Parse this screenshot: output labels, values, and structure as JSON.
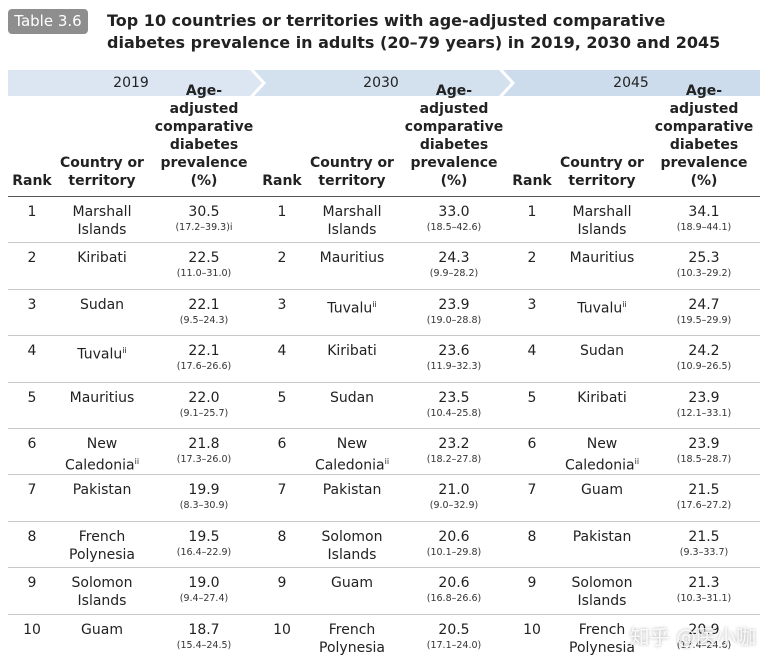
{
  "header": {
    "label": "Table 3.6",
    "title": "Top 10 countries or territories with age-adjusted comparative diabetes prevalence in adults (20–79 years) in 2019, 2030 and 2045"
  },
  "table": {
    "groups": [
      {
        "year": "2019",
        "columns": [
          "Rank",
          "Country or territory",
          "Age-adjusted comparative diabetes prevalence (%)"
        ]
      },
      {
        "year": "2030",
        "columns": [
          "Rank",
          "Country or territory",
          "Age-adjusted comparative diabetes prevalence (%)"
        ]
      },
      {
        "year": "2045",
        "columns": [
          "Rank",
          "Country or territory",
          "Age-adjusted comparative diabetes prevalence (%)"
        ]
      }
    ],
    "rows": [
      [
        {
          "rank": "1",
          "country": "Marshall Islands",
          "value": "30.5",
          "ci": "(17.2–39.3)i"
        },
        {
          "rank": "1",
          "country": "Marshall Islands",
          "value": "33.0",
          "ci": "(18.5–42.6)"
        },
        {
          "rank": "1",
          "country": "Marshall Islands",
          "value": "34.1",
          "ci": "(18.9–44.1)"
        }
      ],
      [
        {
          "rank": "2",
          "country": "Kiribati",
          "value": "22.5",
          "ci": "(11.0–31.0)"
        },
        {
          "rank": "2",
          "country": "Mauritius",
          "value": "24.3",
          "ci": "(9.9–28.2)"
        },
        {
          "rank": "2",
          "country": "Mauritius",
          "value": "25.3",
          "ci": "(10.3–29.2)"
        }
      ],
      [
        {
          "rank": "3",
          "country": "Sudan",
          "value": "22.1",
          "ci": "(9.5–24.3)"
        },
        {
          "rank": "3",
          "country": "Tuvalu",
          "note": "ii",
          "value": "23.9",
          "ci": "(19.0–28.8)"
        },
        {
          "rank": "3",
          "country": "Tuvalu",
          "note": "ii",
          "value": "24.7",
          "ci": "(19.5–29.9)"
        }
      ],
      [
        {
          "rank": "4",
          "country": "Tuvalu",
          "note": "ii",
          "value": "22.1",
          "ci": "(17.6–26.6)"
        },
        {
          "rank": "4",
          "country": "Kiribati",
          "value": "23.6",
          "ci": "(11.9–32.3)"
        },
        {
          "rank": "4",
          "country": "Sudan",
          "value": "24.2",
          "ci": "(10.9–26.5)"
        }
      ],
      [
        {
          "rank": "5",
          "country": "Mauritius",
          "value": "22.0",
          "ci": "(9.1–25.7)"
        },
        {
          "rank": "5",
          "country": "Sudan",
          "value": "23.5",
          "ci": "(10.4–25.8)"
        },
        {
          "rank": "5",
          "country": "Kiribati",
          "value": "23.9",
          "ci": "(12.1–33.1)"
        }
      ],
      [
        {
          "rank": "6",
          "country": "New Caledonia",
          "note": "ii",
          "value": "21.8",
          "ci": "(17.3–26.0)"
        },
        {
          "rank": "6",
          "country": "New Caledonia",
          "note": "ii",
          "value": "23.2",
          "ci": "(18.2–27.8)"
        },
        {
          "rank": "6",
          "country": "New Caledonia",
          "note": "ii",
          "value": "23.9",
          "ci": "(18.5–28.7)"
        }
      ],
      [
        {
          "rank": "7",
          "country": "Pakistan",
          "value": "19.9",
          "ci": "(8.3–30.9)"
        },
        {
          "rank": "7",
          "country": "Pakistan",
          "value": "21.0",
          "ci": "(9.0–32.9)"
        },
        {
          "rank": "7",
          "country": "Guam",
          "value": "21.5",
          "ci": "(17.6–27.2)"
        }
      ],
      [
        {
          "rank": "8",
          "country": "French Polynesia",
          "value": "19.5",
          "ci": "(16.4–22.9)"
        },
        {
          "rank": "8",
          "country": "Solomon Islands",
          "value": "20.6",
          "ci": "(10.1–29.8)"
        },
        {
          "rank": "8",
          "country": "Pakistan",
          "value": "21.5",
          "ci": "(9.3–33.7)"
        }
      ],
      [
        {
          "rank": "9",
          "country": "Solomon Islands",
          "value": "19.0",
          "ci": "(9.4–27.4)"
        },
        {
          "rank": "9",
          "country": "Guam",
          "value": "20.6",
          "ci": "(16.8–26.6)"
        },
        {
          "rank": "9",
          "country": "Solomon Islands",
          "value": "21.3",
          "ci": "(10.3–31.1)"
        }
      ],
      [
        {
          "rank": "10",
          "country": "Guam",
          "value": "18.7",
          "ci": "(15.4–24.5)"
        },
        {
          "rank": "10",
          "country": "French Polynesia",
          "value": "20.5",
          "ci": "(17.1–24.0)"
        },
        {
          "rank": "10",
          "country": "French Polynesia",
          "value": "20.9",
          "ci": "(17.4–24.6)"
        }
      ]
    ]
  },
  "watermark": "知乎 @医小咖"
}
